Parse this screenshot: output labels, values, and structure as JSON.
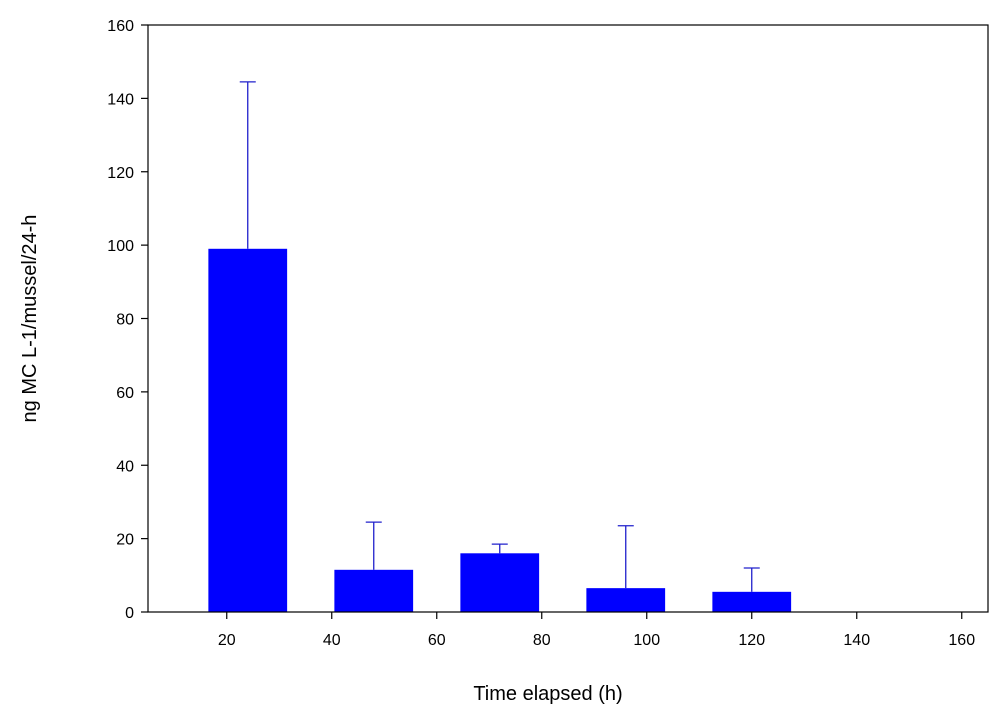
{
  "chart_data": {
    "type": "bar",
    "title": "",
    "xlabel": "Time elapsed (h)",
    "ylabel": "ng MC L-1/mussel/24-h",
    "xlim": [
      5,
      165
    ],
    "ylim": [
      0,
      160
    ],
    "xticks": [
      20,
      40,
      60,
      80,
      100,
      120,
      140,
      160
    ],
    "yticks": [
      0,
      20,
      40,
      60,
      80,
      100,
      120,
      140,
      160
    ],
    "bar_width": 15,
    "bars": [
      {
        "x": 24,
        "value": 99,
        "error": 45.5
      },
      {
        "x": 48,
        "value": 11.5,
        "error": 13
      },
      {
        "x": 72,
        "value": 16,
        "error": 2.5
      },
      {
        "x": 96,
        "value": 6.5,
        "error": 17
      },
      {
        "x": 120,
        "value": 5.5,
        "error": 6.5
      }
    ],
    "colors": {
      "bar": "#0000ff",
      "errorbar": "#2020cc",
      "axis": "#000000"
    },
    "grid": false,
    "legend": "none"
  }
}
